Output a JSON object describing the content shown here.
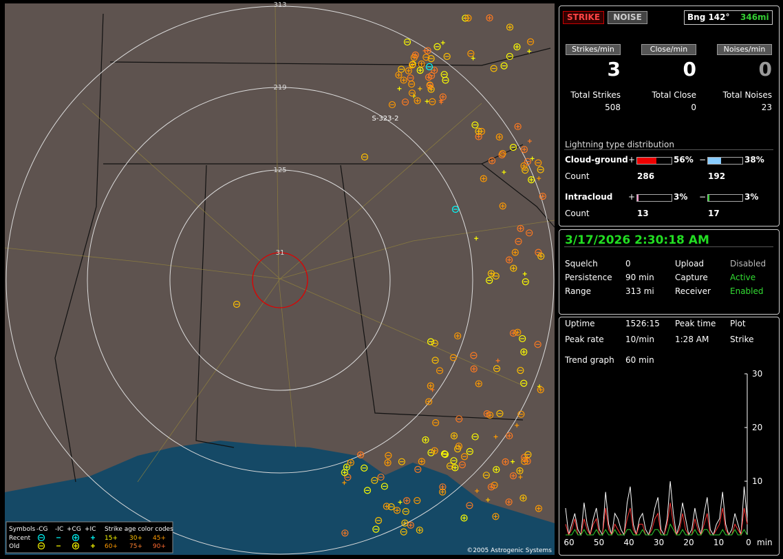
{
  "map": {
    "ring_labels": [
      "313",
      "219",
      "125",
      "31"
    ],
    "marker": "S-323-2",
    "copyright": "©2005 Astrogenic Systems"
  },
  "legend": {
    "title": "Symbols",
    "columns": [
      "-CG",
      "-IC",
      "+CG",
      "+IC"
    ],
    "age_title": "Strike age color codes",
    "rows": [
      {
        "label": "Recent",
        "ages": [
          "15+",
          "30+",
          "45+"
        ]
      },
      {
        "label": "Old",
        "ages": [
          "60+",
          "75+",
          "90+"
        ]
      }
    ]
  },
  "header": {
    "strike": "STRIKE",
    "noise": "NOISE",
    "bearing": "Bng 142°",
    "distance": "346mi"
  },
  "rates": [
    {
      "label": "Strikes/min",
      "value": "3"
    },
    {
      "label": "Close/min",
      "value": "0"
    },
    {
      "label": "Noises/min",
      "value": "0"
    }
  ],
  "totals": [
    {
      "label": "Total Strikes",
      "value": "508"
    },
    {
      "label": "Total Close",
      "value": "0"
    },
    {
      "label": "Total Noises",
      "value": "23"
    }
  ],
  "distribution": {
    "title": "Lightning type distribution",
    "count_label": "Count",
    "rows": [
      {
        "label": "Cloud-ground",
        "pos_sign": "+",
        "pos": {
          "value": 56,
          "label": "56%"
        },
        "neg_sign": "−",
        "neg": {
          "value": 38,
          "label": "38%"
        },
        "pos_count": "286",
        "neg_count": "192"
      },
      {
        "label": "Intracloud",
        "pos_sign": "+",
        "pos": {
          "value": 3,
          "label": "3%"
        },
        "neg_sign": "−",
        "neg": {
          "value": 3,
          "label": "3%"
        },
        "pos_count": "13",
        "neg_count": "17"
      }
    ]
  },
  "status": {
    "datetime": "3/17/2026 2:30:18 AM",
    "rows": [
      [
        "Squelch",
        "0",
        "Upload",
        "Disabled"
      ],
      [
        "Persistence",
        "90 min",
        "Capture",
        "Active"
      ],
      [
        "Range",
        "313 mi",
        "Receiver",
        "Enabled"
      ]
    ]
  },
  "stats": {
    "rows": [
      [
        "Uptime",
        "1526:15",
        "Peak time",
        "Plot"
      ],
      [
        "Peak rate",
        "10/min",
        "1:28 AM",
        "Strike"
      ]
    ],
    "trend_label": "Trend graph",
    "trend_value": "60 min"
  },
  "trend": {
    "ylim": [
      0,
      30
    ],
    "yticks": [
      10,
      20,
      30
    ],
    "xticks": [
      60,
      50,
      40,
      30,
      20,
      10,
      0
    ],
    "xunit": "min",
    "series": [
      {
        "color": "#ffffff",
        "values": [
          5,
          0,
          2,
          4,
          1,
          0,
          6,
          2,
          0,
          3,
          5,
          1,
          0,
          8,
          2,
          0,
          4,
          3,
          1,
          0,
          6,
          9,
          2,
          0,
          3,
          4,
          1,
          0,
          2,
          5,
          7,
          1,
          0,
          3,
          10,
          4,
          0,
          2,
          6,
          3,
          0,
          1,
          5,
          2,
          0,
          4,
          7,
          1,
          0,
          2,
          3,
          8,
          2,
          0,
          1,
          4,
          2,
          0,
          9,
          3
        ]
      },
      {
        "color": "#ff3030",
        "values": [
          2,
          0,
          1,
          3,
          0,
          0,
          3,
          1,
          0,
          2,
          3,
          0,
          0,
          5,
          1,
          0,
          2,
          1,
          0,
          0,
          3,
          5,
          1,
          0,
          2,
          2,
          0,
          0,
          1,
          3,
          4,
          0,
          0,
          2,
          6,
          2,
          0,
          1,
          4,
          1,
          0,
          0,
          3,
          1,
          0,
          2,
          4,
          0,
          0,
          1,
          2,
          5,
          1,
          0,
          0,
          2,
          1,
          0,
          5,
          2
        ]
      },
      {
        "color": "#30d030",
        "values": [
          0,
          0,
          0,
          1,
          0,
          0,
          1,
          0,
          0,
          0,
          1,
          0,
          0,
          1,
          0,
          0,
          1,
          0,
          0,
          0,
          1,
          1,
          0,
          0,
          0,
          1,
          0,
          0,
          0,
          1,
          1,
          0,
          0,
          0,
          2,
          1,
          0,
          0,
          1,
          0,
          0,
          0,
          1,
          0,
          0,
          1,
          1,
          0,
          0,
          0,
          0,
          1,
          0,
          0,
          0,
          1,
          0,
          0,
          1,
          0
        ]
      }
    ]
  }
}
